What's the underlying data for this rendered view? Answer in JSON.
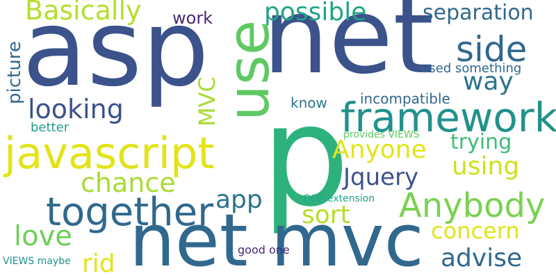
{
  "cloud": {
    "words": [
      {
        "id": "asp",
        "text": "asp",
        "color": "#3b528b"
      },
      {
        "id": "net1",
        "text": "net",
        "color": "#3b528b"
      },
      {
        "id": "p",
        "text": "p",
        "color": "#2db27d"
      },
      {
        "id": "net-mvc",
        "text": "net mvc",
        "color": "#31688e"
      },
      {
        "id": "use",
        "text": "use",
        "color": "#5ec962"
      },
      {
        "id": "javascript",
        "text": "javascript",
        "color": "#e2e418"
      },
      {
        "id": "framework",
        "text": "framework",
        "color": "#21918c"
      },
      {
        "id": "together",
        "text": "together",
        "color": "#31688e"
      },
      {
        "id": "anybody",
        "text": "Anybody",
        "color": "#7ad151"
      },
      {
        "id": "basically",
        "text": "Basically",
        "color": "#b5de2b"
      },
      {
        "id": "possible",
        "text": "possible",
        "color": "#20a486"
      },
      {
        "id": "separation",
        "text": "separation",
        "color": "#31688e"
      },
      {
        "id": "side",
        "text": "side",
        "color": "#31688e"
      },
      {
        "id": "way",
        "text": "way",
        "color": "#2c728e"
      },
      {
        "id": "looking",
        "text": "looking",
        "color": "#3b528b"
      },
      {
        "id": "anyone",
        "text": "Anyone",
        "color": "#e2e418"
      },
      {
        "id": "using",
        "text": "using",
        "color": "#cde11d"
      },
      {
        "id": "trying",
        "text": "trying",
        "color": "#3dbc74"
      },
      {
        "id": "jquery",
        "text": "Jquery",
        "color": "#3b528b"
      },
      {
        "id": "chance",
        "text": "chance",
        "color": "#a8db34"
      },
      {
        "id": "app",
        "text": "app",
        "color": "#2c728e"
      },
      {
        "id": "sort",
        "text": "sort",
        "color": "#b5de2b"
      },
      {
        "id": "love",
        "text": "love",
        "color": "#6ece58"
      },
      {
        "id": "concern",
        "text": "concern",
        "color": "#e2e418"
      },
      {
        "id": "advise",
        "text": "advise",
        "color": "#31688e"
      },
      {
        "id": "rid",
        "text": "rid",
        "color": "#e2e418"
      },
      {
        "id": "mvc",
        "text": "MVC",
        "color": "#a8db34"
      },
      {
        "id": "picture",
        "text": "picture",
        "color": "#31688e"
      },
      {
        "id": "work",
        "text": "work",
        "color": "#482878"
      },
      {
        "id": "used-something",
        "text": "used something",
        "color": "#31688e"
      },
      {
        "id": "incompatible",
        "text": "incompatible",
        "color": "#31688e"
      },
      {
        "id": "know",
        "text": "know",
        "color": "#2a788e"
      },
      {
        "id": "better",
        "text": "better",
        "color": "#1f9e89"
      },
      {
        "id": "provides-views",
        "text": "provides VIEWS",
        "color": "#5ec962"
      },
      {
        "id": "oop-extension",
        "text": "OOP extension",
        "color": "#20a486"
      },
      {
        "id": "views-maybe",
        "text": "VIEWS maybe",
        "color": "#21918c"
      },
      {
        "id": "good-one",
        "text": "good one",
        "color": "#482878"
      }
    ]
  }
}
